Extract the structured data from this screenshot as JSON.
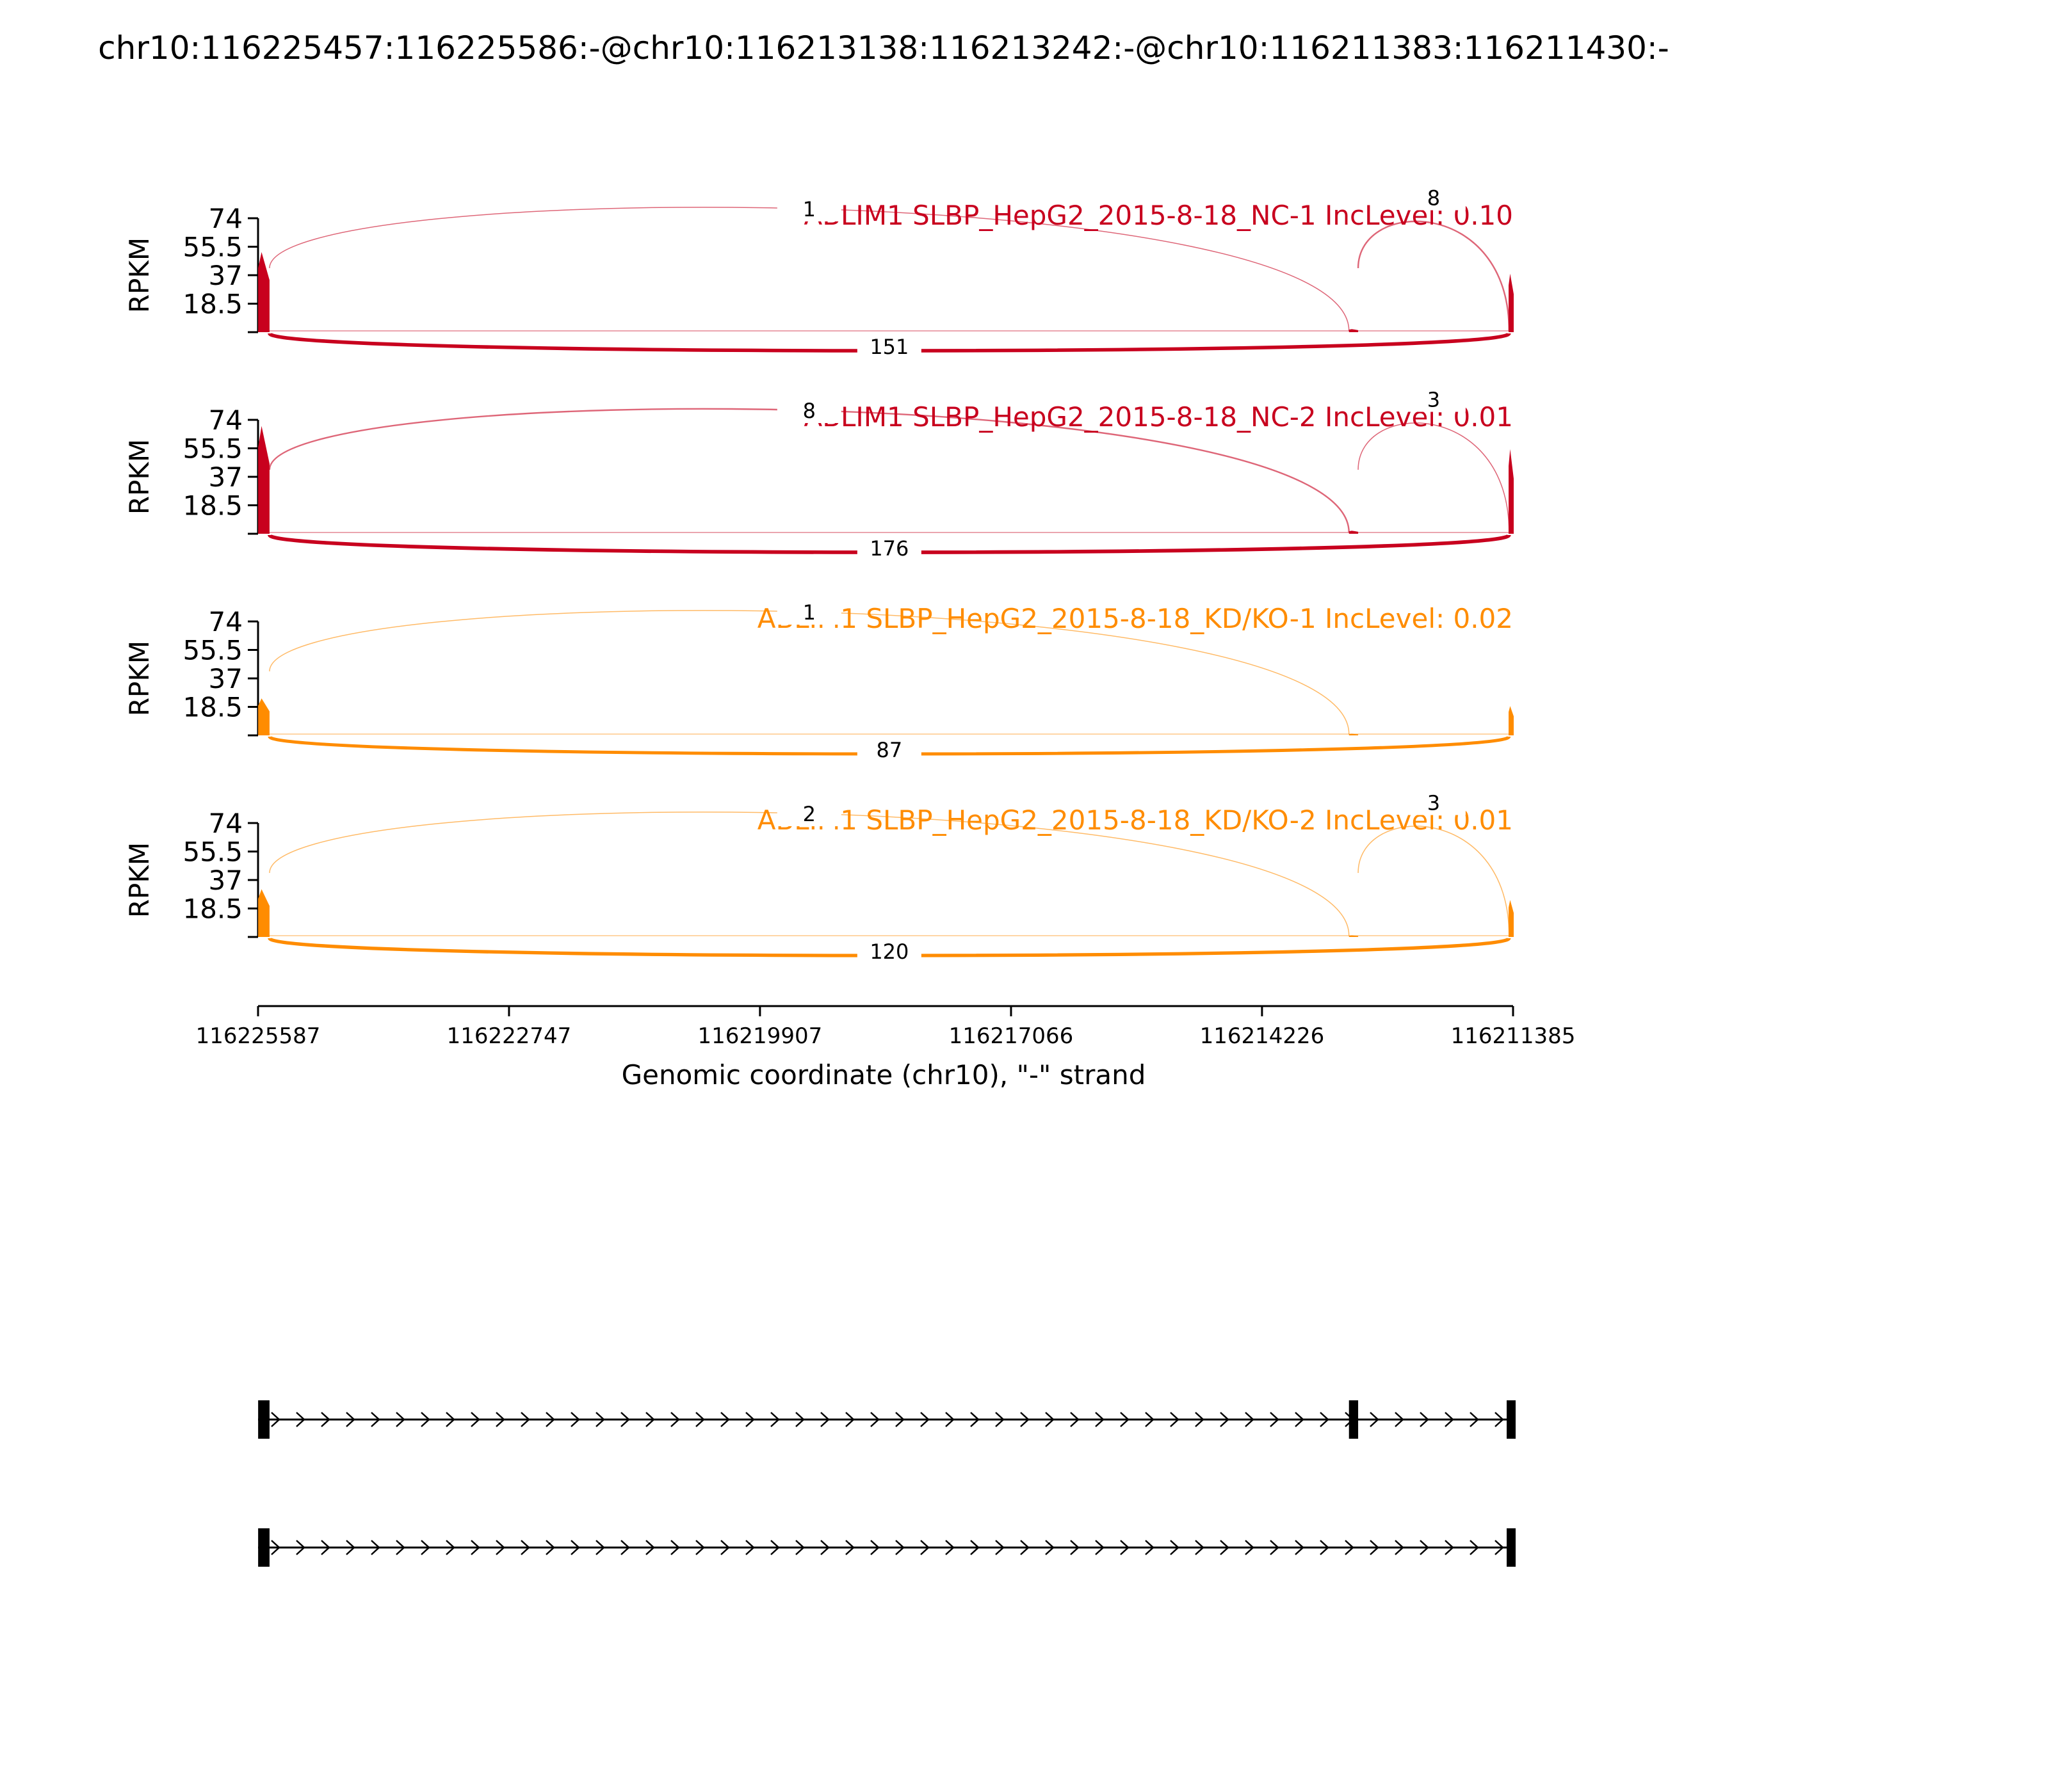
{
  "title": "chr10:116225457:116225586:-@chr10:116213138:116213242:-@chr10:116211383:116211430:-",
  "colors": {
    "nc": "#c8001e",
    "kd": "#ff8c00",
    "axis": "#000000",
    "background": "#ffffff"
  },
  "chart_data": {
    "type": "area",
    "description": "Sashimi plot: RPKM read coverage with splice-junction arcs and junction read counts",
    "xlabel": "Genomic coordinate (chr10), \"-\" strand",
    "ylabel": "RPKM",
    "x_reversed": true,
    "xlim": [
      116225587,
      116211385
    ],
    "x_ticks": [
      116225587,
      116222747,
      116219907,
      116217066,
      116214226,
      116211385
    ],
    "ylim": [
      0,
      74
    ],
    "y_ticks": [
      18.5,
      37,
      55.5,
      74
    ],
    "y_tick_labels": [
      "18.5",
      "37",
      "55.5",
      "74"
    ],
    "grid": false,
    "exons": [
      {
        "name": "upstream",
        "start": 116225586,
        "end": 116225457
      },
      {
        "name": "target",
        "start": 116213242,
        "end": 116213138
      },
      {
        "name": "downstream",
        "start": 116211430,
        "end": 116211383
      }
    ],
    "tracks": [
      {
        "label": "ABLIM1 SLBP_HepG2_2015-8-18_NC-1 IncLevel: 0.10",
        "color_key": "nc",
        "coverage_peaks": {
          "upstream": 52,
          "target": 2,
          "downstream": 38
        },
        "junctions": [
          {
            "from": 116225457,
            "to": 116213242,
            "count": 1,
            "count_label": "1",
            "side": "above"
          },
          {
            "from": 116213138,
            "to": 116211430,
            "count": 8,
            "count_label": "8",
            "side": "above"
          },
          {
            "from": 116225457,
            "to": 116211430,
            "count": 151,
            "count_label": "151",
            "side": "below"
          }
        ]
      },
      {
        "label": "ABLIM1 SLBP_HepG2_2015-8-18_NC-2 IncLevel: 0.01",
        "color_key": "nc",
        "coverage_peaks": {
          "upstream": 70,
          "target": 2,
          "downstream": 55
        },
        "junctions": [
          {
            "from": 116225457,
            "to": 116213242,
            "count": 8,
            "count_label": "8",
            "side": "above"
          },
          {
            "from": 116213138,
            "to": 116211430,
            "count": 3,
            "count_label": "3",
            "side": "above"
          },
          {
            "from": 116225457,
            "to": 116211430,
            "count": 176,
            "count_label": "176",
            "side": "below"
          }
        ]
      },
      {
        "label": "ABLIM1 SLBP_HepG2_2015-8-18_KD/KO-1 IncLevel: 0.02",
        "color_key": "kd",
        "coverage_peaks": {
          "upstream": 24,
          "target": 1,
          "downstream": 19
        },
        "junctions": [
          {
            "from": 116225457,
            "to": 116213242,
            "count": 1,
            "count_label": "1",
            "side": "above"
          },
          {
            "from": 116225457,
            "to": 116211430,
            "count": 87,
            "count_label": "87",
            "side": "below"
          }
        ]
      },
      {
        "label": "ABLIM1 SLBP_HepG2_2015-8-18_KD/KO-2 IncLevel: 0.01",
        "color_key": "kd",
        "coverage_peaks": {
          "upstream": 31,
          "target": 1,
          "downstream": 24
        },
        "junctions": [
          {
            "from": 116225457,
            "to": 116213242,
            "count": 2,
            "count_label": "2",
            "side": "above"
          },
          {
            "from": 116213138,
            "to": 116211430,
            "count": 3,
            "count_label": "3",
            "side": "above"
          },
          {
            "from": 116225457,
            "to": 116211430,
            "count": 120,
            "count_label": "120",
            "side": "below"
          }
        ]
      }
    ],
    "isoforms": [
      {
        "name": "inclusion",
        "exons": [
          "upstream",
          "target",
          "downstream"
        ],
        "strand_arrows": true
      },
      {
        "name": "exclusion",
        "exons": [
          "upstream",
          "downstream"
        ],
        "strand_arrows": true
      }
    ]
  }
}
